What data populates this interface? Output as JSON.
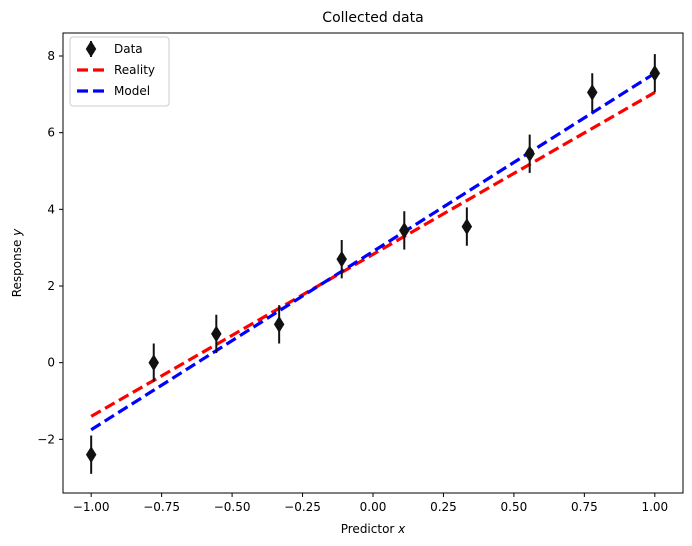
{
  "chart_data": {
    "type": "scatter",
    "title": "Collected data",
    "xlabel": {
      "prefix": "Predictor ",
      "var": "x"
    },
    "ylabel": {
      "prefix": "Response ",
      "var": "y"
    },
    "xlim": [
      -1.1,
      1.1
    ],
    "ylim": [
      -3.4,
      8.6
    ],
    "xticks": [
      -1.0,
      -0.75,
      -0.5,
      -0.25,
      0.0,
      0.25,
      0.5,
      0.75,
      1.0
    ],
    "xtick_labels": [
      "−1.00",
      "−0.75",
      "−0.50",
      "−0.25",
      "0.00",
      "0.25",
      "0.50",
      "0.75",
      "1.00"
    ],
    "yticks": [
      -2,
      0,
      2,
      4,
      6,
      8
    ],
    "ytick_labels": [
      "−2",
      "0",
      "2",
      "4",
      "6",
      "8"
    ],
    "grid": false,
    "legend_position": "top-left",
    "series": [
      {
        "name": "Data",
        "kind": "errorbar",
        "marker": "thin-diamond",
        "color": "#111111",
        "x": [
          -1.0,
          -0.778,
          -0.556,
          -0.333,
          -0.111,
          0.111,
          0.333,
          0.556,
          0.778,
          1.0
        ],
        "y": [
          -2.4,
          0.0,
          0.75,
          1.0,
          2.7,
          3.45,
          3.55,
          5.45,
          7.05,
          7.55
        ],
        "yerr": [
          0.5,
          0.5,
          0.5,
          0.5,
          0.5,
          0.5,
          0.5,
          0.5,
          0.5,
          0.5
        ]
      },
      {
        "name": "Reality",
        "kind": "line",
        "style": "dashed",
        "color": "#ff0000",
        "x": [
          -1.0,
          1.0
        ],
        "y": [
          -1.4,
          7.05
        ]
      },
      {
        "name": "Model",
        "kind": "line",
        "style": "dashed",
        "color": "#0000ff",
        "x": [
          -1.0,
          1.0
        ],
        "y": [
          -1.75,
          7.55
        ]
      }
    ]
  }
}
